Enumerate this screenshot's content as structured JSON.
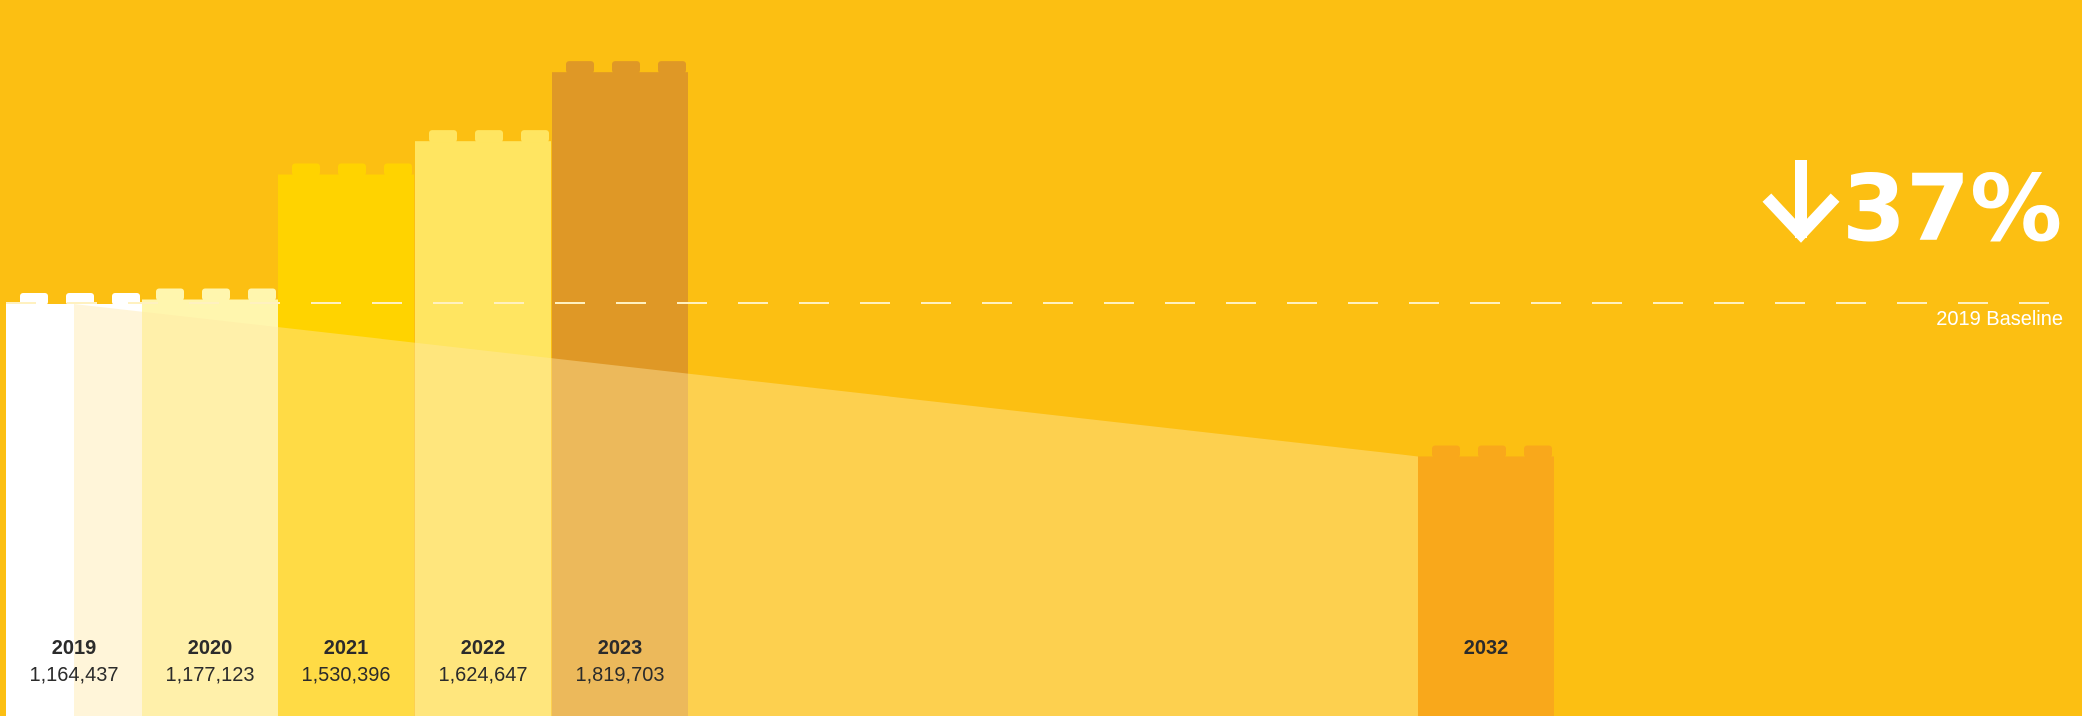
{
  "chart_data": {
    "type": "bar",
    "categories": [
      "2019",
      "2020",
      "2021",
      "2022",
      "2023",
      "2032"
    ],
    "values": [
      1164437,
      1177123,
      1530396,
      1624647,
      1819703,
      733595
    ],
    "value_labels": [
      "1,164,437",
      "1,177,123",
      "1,530,396",
      "1,624,647",
      "1,819,703",
      ""
    ],
    "headline": "37%",
    "headline_direction": "down",
    "baseline_label": "2019 Baseline",
    "baseline_value": 1164437,
    "trend_line": {
      "from": [
        "2019",
        1164437
      ],
      "to": [
        "2032",
        733595
      ]
    },
    "ylim": [
      0,
      2100000
    ],
    "grid": false,
    "legend": "none"
  },
  "colors": {
    "background": "#FCBF12",
    "bars": [
      "#FFFFFF",
      "#FFF6AE",
      "#FFD300",
      "#FFE561",
      "#DF9826",
      "#F9A81B"
    ],
    "bar_overlay_tint": [
      "#FFFFFF",
      "#FFF6AE",
      "#FFE345",
      "#FFEB7C",
      "#E9C060",
      "#F9A81B"
    ],
    "trend_fill": "#FFE8A4",
    "baseline_dash": "#FFF1C0",
    "text_dark": "#2B2B2B",
    "text_light": "#FFFFFF"
  },
  "icons": {
    "headline_arrow": "arrow-down-icon",
    "bar_studs": "lego-brick-studs"
  }
}
